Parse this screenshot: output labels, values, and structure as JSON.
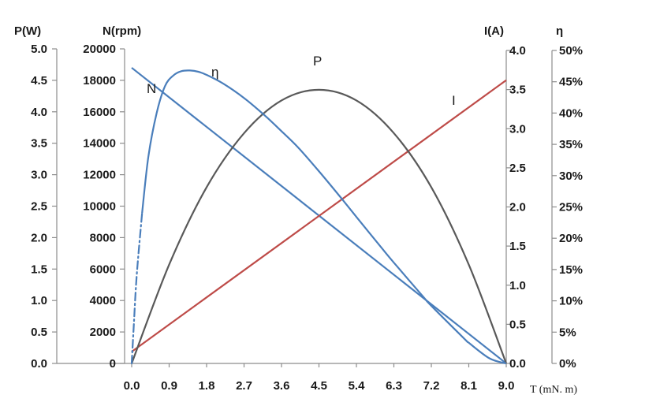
{
  "chart_data": {
    "type": "line",
    "title": "",
    "x_axis": {
      "label": "T",
      "unit": "(mN. m)",
      "min": 0,
      "max": 9.0,
      "ticks": [
        "0.0",
        "0.9",
        "1.8",
        "2.7",
        "3.6",
        "4.5",
        "5.4",
        "6.3",
        "7.2",
        "8.1",
        "9.0"
      ]
    },
    "axes": {
      "P": {
        "label": "P(W)",
        "min": 0,
        "max": 5.0,
        "ticks": [
          "0.0",
          "0.5",
          "1.0",
          "1.5",
          "2.0",
          "2.5",
          "3.0",
          "3.5",
          "4.0",
          "4.5",
          "5.0"
        ]
      },
      "N": {
        "label": "N(rpm)",
        "min": 0,
        "max": 20000,
        "ticks": [
          "0",
          "2000",
          "4000",
          "6000",
          "8000",
          "10000",
          "12000",
          "14000",
          "16000",
          "18000",
          "20000"
        ]
      },
      "I": {
        "label": "I(A)",
        "min": 0,
        "max": 4.0,
        "ticks": [
          "0.0",
          "0.5",
          "1.0",
          "1.5",
          "2.0",
          "2.5",
          "3.0",
          "3.5",
          "4.0"
        ]
      },
      "eta": {
        "label": "η",
        "min": 0,
        "max": 50,
        "ticks": [
          "0%",
          "5%",
          "10%",
          "15%",
          "20%",
          "25%",
          "30%",
          "35%",
          "40%",
          "45%",
          "50%"
        ]
      }
    },
    "series": [
      {
        "name": "N",
        "label": "N",
        "axis": "N",
        "color": "#4a7ebb",
        "x": [
          0,
          9.0
        ],
        "y": [
          18800,
          0
        ]
      },
      {
        "name": "I",
        "label": "I",
        "axis": "I",
        "color": "#be4b48",
        "x": [
          0,
          9.0
        ],
        "y": [
          0.15,
          3.62
        ]
      },
      {
        "name": "P",
        "label": "P",
        "axis": "P",
        "color": "#595959",
        "x": [
          0,
          0.9,
          1.8,
          2.7,
          3.6,
          4.5,
          5.4,
          6.3,
          7.2,
          8.1,
          9.0
        ],
        "y": [
          0,
          1.57,
          2.8,
          3.66,
          4.18,
          4.35,
          4.18,
          3.66,
          2.8,
          1.57,
          0
        ]
      },
      {
        "name": "eta",
        "label": "η",
        "axis": "eta",
        "color": "#4a7ebb",
        "x": [
          0,
          0.05,
          0.12,
          0.25,
          0.4,
          0.6,
          0.8,
          1.0,
          1.2,
          1.4,
          1.6,
          1.8,
          2.2,
          2.7,
          3.2,
          3.6,
          4.0,
          4.5,
          5.0,
          5.4,
          6.0,
          6.3,
          7.0,
          7.2,
          8.0,
          8.1,
          8.6,
          9.0
        ],
        "y": [
          0,
          6,
          14,
          24,
          33,
          40,
          44.3,
          46,
          46.7,
          46.8,
          46.6,
          46.1,
          44.7,
          42.4,
          39.6,
          37.1,
          34.5,
          30.7,
          26.7,
          23.4,
          18.5,
          16.1,
          10.7,
          9.2,
          3.9,
          3.3,
          0.8,
          0
        ]
      }
    ]
  }
}
